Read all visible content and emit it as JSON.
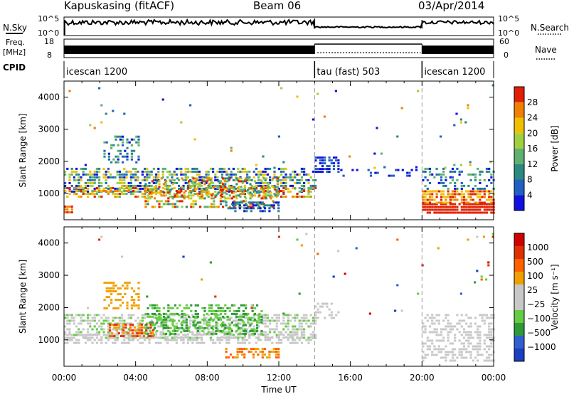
{
  "header": {
    "station": "Kapuskasing (fitACF)",
    "beam": "Beam 06",
    "date": "03/Apr/2014"
  },
  "panels": {
    "nsky_label": "N.Sky",
    "nsky_tick_high": "10^5",
    "nsky_tick_low": "10^0",
    "nsearch_label": "N.Search",
    "freq_label_1": "Freq.",
    "freq_label_2": "[MHz]",
    "freq_tick_high": "18",
    "freq_tick_low": "8",
    "nave_tick_high": "60",
    "nave_tick_low": "0",
    "nave_label": "Nave",
    "cpid_label": "CPID",
    "cpid_segments": [
      {
        "label": "icescan 1200",
        "start_h": 0,
        "end_h": 14
      },
      {
        "label": "tau (fast) 503",
        "start_h": 14,
        "end_h": 20
      },
      {
        "label": "icescan 1200",
        "start_h": 20,
        "end_h": 24
      }
    ]
  },
  "colors": {
    "power_scale": [
      "#1010e0",
      "#2060c0",
      "#2a8a80",
      "#60b070",
      "#a0d040",
      "#f0c000",
      "#f08000",
      "#e02000"
    ],
    "velocity_scale": [
      "#1a3fbf",
      "#3060d0",
      "#2f9a3a",
      "#66cc44",
      "#c8c8c8",
      "#c8c8c8",
      "#f0a000",
      "#ff6000",
      "#e03000",
      "#d00000"
    ]
  },
  "chart_data": [
    {
      "type": "heatmap",
      "title": "",
      "xlabel": "Time UT",
      "ylabel": "Slant Range [km]",
      "xlim": [
        0,
        24
      ],
      "ylim": [
        180,
        4500
      ],
      "x_ticks": [
        "00:00",
        "04:00",
        "08:00",
        "12:00",
        "16:00",
        "20:00",
        "00:00"
      ],
      "y_ticks": [
        "1000",
        "2000",
        "3000",
        "4000"
      ],
      "colorbar": {
        "label": "Power [dB]",
        "ticks": [
          "4",
          "8",
          "12",
          "16",
          "20",
          "24",
          "28"
        ],
        "range": [
          0,
          30
        ]
      },
      "grid": false
    },
    {
      "type": "heatmap",
      "title": "",
      "xlabel": "Time UT",
      "ylabel": "Slant Range [km]",
      "xlim": [
        0,
        24
      ],
      "ylim": [
        180,
        4500
      ],
      "x_ticks": [
        "00:00",
        "04:00",
        "08:00",
        "12:00",
        "16:00",
        "20:00",
        "00:00"
      ],
      "y_ticks": [
        "1000",
        "2000",
        "3000",
        "4000"
      ],
      "colorbar": {
        "label": "Velocity [m s⁻¹]",
        "ticks": [
          "1000",
          "500",
          "100",
          "25",
          "−25",
          "−100",
          "−500",
          "−1000"
        ]
      },
      "grid": false
    }
  ]
}
